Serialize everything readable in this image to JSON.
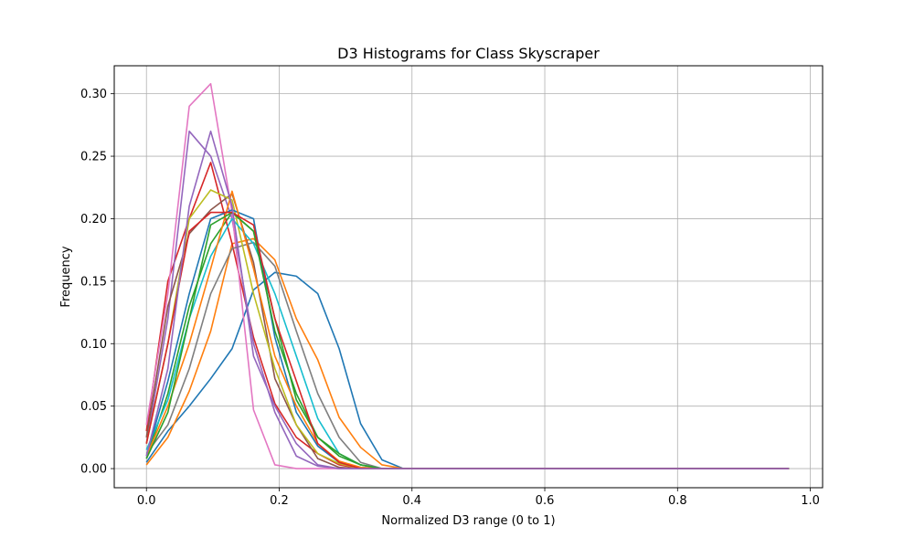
{
  "chart_data": {
    "type": "line",
    "title": "D3 Histograms for Class Skyscraper",
    "xlabel": "Normalized D3 range (0 to 1)",
    "ylabel": "Frequency",
    "xlim": [
      -0.0485,
      1.0185
    ],
    "ylim": [
      -0.0153,
      0.3224
    ],
    "grid": true,
    "xticks": [
      0.0,
      0.2,
      0.4,
      0.6,
      0.8,
      1.0
    ],
    "xtick_labels": [
      "0.0",
      "0.2",
      "0.4",
      "0.6",
      "0.8",
      "1.0"
    ],
    "yticks": [
      0.0,
      0.05,
      0.1,
      0.15,
      0.2,
      0.25,
      0.3
    ],
    "ytick_labels": [
      "0.00",
      "0.05",
      "0.10",
      "0.15",
      "0.20",
      "0.25",
      "0.30"
    ],
    "x": [
      0.0,
      0.0323,
      0.0645,
      0.0968,
      0.129,
      0.1613,
      0.1935,
      0.2258,
      0.2581,
      0.2903,
      0.3226,
      0.3548,
      0.3871,
      0.4194,
      0.4516,
      0.4839,
      0.5161,
      0.5484,
      0.5806,
      0.6129,
      0.6452,
      0.6774,
      0.7097,
      0.7419,
      0.7742,
      0.8065,
      0.8387,
      0.871,
      0.9032,
      0.9355,
      0.9677
    ],
    "series": [
      {
        "color": "#1f77b4",
        "values": [
          0.005,
          0.03,
          0.05,
          0.072,
          0.096,
          0.143,
          0.157,
          0.154,
          0.14,
          0.096,
          0.036,
          0.007,
          0.0,
          0,
          0,
          0,
          0,
          0,
          0,
          0,
          0,
          0,
          0,
          0,
          0,
          0,
          0,
          0,
          0,
          0,
          0
        ]
      },
      {
        "color": "#ff7f0e",
        "values": [
          0.003,
          0.025,
          0.062,
          0.11,
          0.18,
          0.184,
          0.167,
          0.12,
          0.087,
          0.041,
          0.017,
          0.003,
          0.0,
          0,
          0,
          0,
          0,
          0,
          0,
          0,
          0,
          0,
          0,
          0,
          0,
          0,
          0,
          0,
          0,
          0,
          0
        ]
      },
      {
        "color": "#2ca02c",
        "values": [
          0.008,
          0.06,
          0.13,
          0.18,
          0.205,
          0.19,
          0.12,
          0.055,
          0.025,
          0.01,
          0.003,
          0.0,
          0,
          0,
          0,
          0,
          0,
          0,
          0,
          0,
          0,
          0,
          0,
          0,
          0,
          0,
          0,
          0,
          0,
          0,
          0
        ]
      },
      {
        "color": "#d62728",
        "values": [
          0.03,
          0.15,
          0.2,
          0.245,
          0.18,
          0.105,
          0.052,
          0.025,
          0.012,
          0.003,
          0.0,
          0,
          0,
          0,
          0,
          0,
          0,
          0,
          0,
          0,
          0,
          0,
          0,
          0,
          0,
          0,
          0,
          0,
          0,
          0,
          0
        ]
      },
      {
        "color": "#9467bd",
        "values": [
          0.02,
          0.12,
          0.27,
          0.25,
          0.2,
          0.1,
          0.045,
          0.01,
          0.002,
          0.0,
          0,
          0,
          0,
          0,
          0,
          0,
          0,
          0,
          0,
          0,
          0,
          0,
          0,
          0,
          0,
          0,
          0,
          0,
          0,
          0,
          0
        ]
      },
      {
        "color": "#8c564b",
        "values": [
          0.025,
          0.13,
          0.188,
          0.207,
          0.22,
          0.165,
          0.072,
          0.035,
          0.008,
          0.001,
          0.0,
          0,
          0,
          0,
          0,
          0,
          0,
          0,
          0,
          0,
          0,
          0,
          0,
          0,
          0,
          0,
          0,
          0,
          0,
          0,
          0
        ]
      },
      {
        "color": "#e377c2",
        "values": [
          0.035,
          0.14,
          0.29,
          0.308,
          0.205,
          0.047,
          0.003,
          0.0,
          0.0,
          0,
          0,
          0,
          0,
          0,
          0,
          0,
          0,
          0,
          0,
          0,
          0,
          0,
          0,
          0,
          0,
          0,
          0,
          0,
          0,
          0,
          0
        ]
      },
      {
        "color": "#7f7f7f",
        "values": [
          0.012,
          0.035,
          0.08,
          0.14,
          0.176,
          0.181,
          0.162,
          0.11,
          0.06,
          0.025,
          0.005,
          0.0,
          0,
          0,
          0,
          0,
          0,
          0,
          0,
          0,
          0,
          0,
          0,
          0,
          0,
          0,
          0,
          0,
          0,
          0,
          0
        ]
      },
      {
        "color": "#bcbd22",
        "values": [
          0.02,
          0.1,
          0.2,
          0.223,
          0.215,
          0.14,
          0.08,
          0.035,
          0.012,
          0.004,
          0.0,
          0,
          0,
          0,
          0,
          0,
          0,
          0,
          0,
          0,
          0,
          0,
          0,
          0,
          0,
          0,
          0,
          0,
          0,
          0,
          0
        ]
      },
      {
        "color": "#17becf",
        "values": [
          0.015,
          0.055,
          0.12,
          0.17,
          0.2,
          0.18,
          0.14,
          0.09,
          0.04,
          0.012,
          0.003,
          0.0,
          0,
          0,
          0,
          0,
          0,
          0,
          0,
          0,
          0,
          0,
          0,
          0,
          0,
          0,
          0,
          0,
          0,
          0,
          0
        ]
      },
      {
        "color": "#1f77b4",
        "values": [
          0.01,
          0.07,
          0.14,
          0.2,
          0.207,
          0.2,
          0.105,
          0.045,
          0.018,
          0.005,
          0.001,
          0.0,
          0,
          0,
          0,
          0,
          0,
          0,
          0,
          0,
          0,
          0,
          0,
          0,
          0,
          0,
          0,
          0,
          0,
          0,
          0
        ]
      },
      {
        "color": "#ff7f0e",
        "values": [
          0.01,
          0.05,
          0.1,
          0.16,
          0.222,
          0.16,
          0.09,
          0.05,
          0.02,
          0.006,
          0.001,
          0.0,
          0,
          0,
          0,
          0,
          0,
          0,
          0,
          0,
          0,
          0,
          0,
          0,
          0,
          0,
          0,
          0,
          0,
          0,
          0
        ]
      },
      {
        "color": "#2ca02c",
        "values": [
          0.008,
          0.045,
          0.12,
          0.195,
          0.205,
          0.19,
          0.11,
          0.06,
          0.025,
          0.012,
          0.003,
          0.0,
          0,
          0,
          0,
          0,
          0,
          0,
          0,
          0,
          0,
          0,
          0,
          0,
          0,
          0,
          0,
          0,
          0,
          0,
          0
        ]
      },
      {
        "color": "#d62728",
        "values": [
          0.02,
          0.1,
          0.19,
          0.205,
          0.205,
          0.195,
          0.12,
          0.07,
          0.02,
          0.005,
          0.0,
          0,
          0,
          0,
          0,
          0,
          0,
          0,
          0,
          0,
          0,
          0,
          0,
          0,
          0,
          0,
          0,
          0,
          0,
          0,
          0
        ]
      },
      {
        "color": "#9467bd",
        "values": [
          0.01,
          0.08,
          0.21,
          0.27,
          0.21,
          0.09,
          0.05,
          0.02,
          0.003,
          0.0,
          0,
          0,
          0,
          0,
          0,
          0,
          0,
          0,
          0,
          0,
          0,
          0,
          0,
          0,
          0,
          0,
          0,
          0,
          0,
          0,
          0
        ]
      }
    ]
  }
}
